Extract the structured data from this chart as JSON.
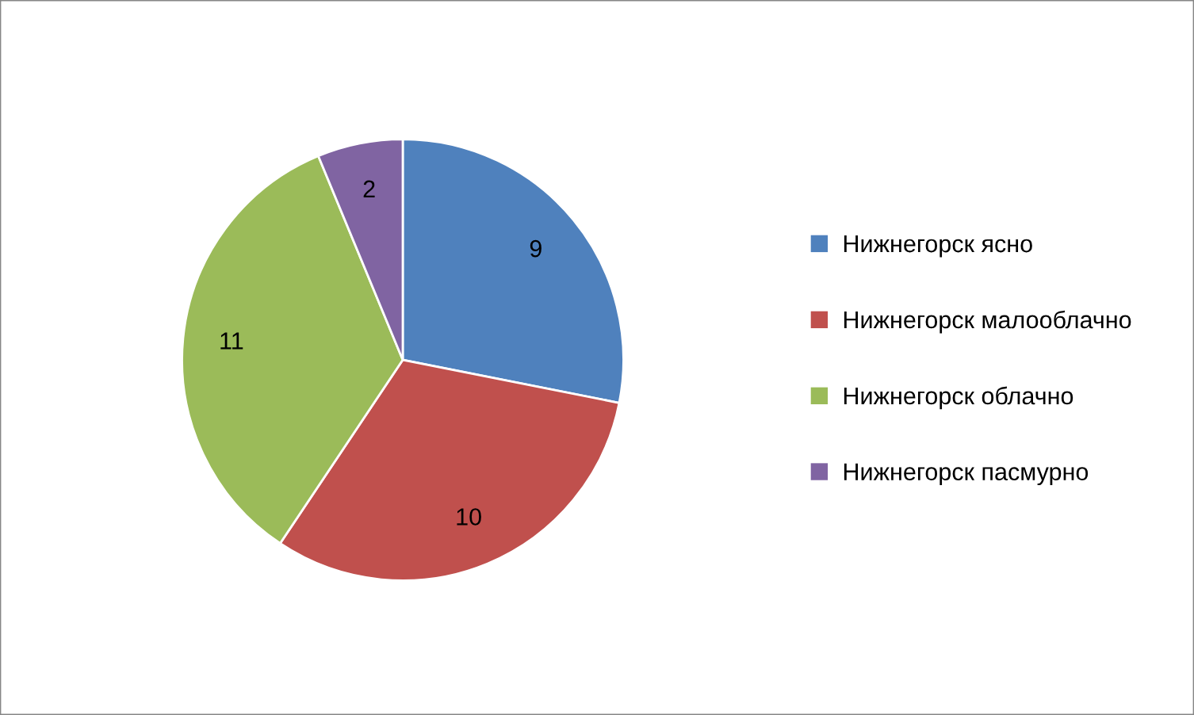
{
  "chart_data": {
    "type": "pie",
    "categories": [
      "Нижнегорск ясно",
      "Нижнегорск малооблачно",
      "Нижнегорск облачно",
      "Нижнегорск пасмурно"
    ],
    "values": [
      9,
      10,
      11,
      2
    ],
    "colors": [
      "#4f81bd",
      "#c0504d",
      "#9bbb59",
      "#8064a2"
    ],
    "data_labels": true,
    "legend": "right"
  }
}
